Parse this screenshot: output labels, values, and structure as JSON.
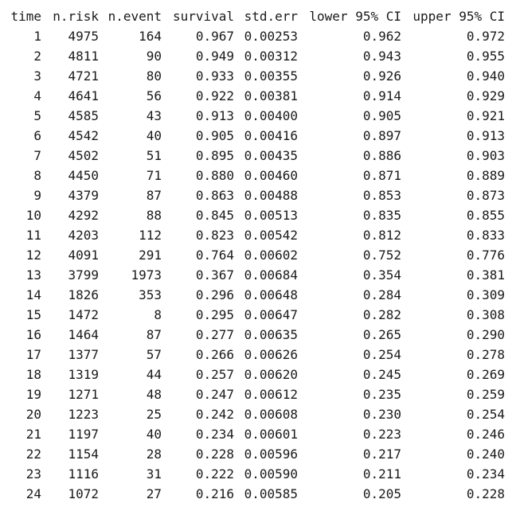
{
  "table": {
    "headers": [
      "time",
      "n.risk",
      "n.event",
      "survival",
      "std.err",
      "lower 95% CI",
      "upper 95% CI"
    ],
    "rows": [
      [
        "1",
        "4975",
        "164",
        "0.967",
        "0.00253",
        "0.962",
        "0.972"
      ],
      [
        "2",
        "4811",
        "90",
        "0.949",
        "0.00312",
        "0.943",
        "0.955"
      ],
      [
        "3",
        "4721",
        "80",
        "0.933",
        "0.00355",
        "0.926",
        "0.940"
      ],
      [
        "4",
        "4641",
        "56",
        "0.922",
        "0.00381",
        "0.914",
        "0.929"
      ],
      [
        "5",
        "4585",
        "43",
        "0.913",
        "0.00400",
        "0.905",
        "0.921"
      ],
      [
        "6",
        "4542",
        "40",
        "0.905",
        "0.00416",
        "0.897",
        "0.913"
      ],
      [
        "7",
        "4502",
        "51",
        "0.895",
        "0.00435",
        "0.886",
        "0.903"
      ],
      [
        "8",
        "4450",
        "71",
        "0.880",
        "0.00460",
        "0.871",
        "0.889"
      ],
      [
        "9",
        "4379",
        "87",
        "0.863",
        "0.00488",
        "0.853",
        "0.873"
      ],
      [
        "10",
        "4292",
        "88",
        "0.845",
        "0.00513",
        "0.835",
        "0.855"
      ],
      [
        "11",
        "4203",
        "112",
        "0.823",
        "0.00542",
        "0.812",
        "0.833"
      ],
      [
        "12",
        "4091",
        "291",
        "0.764",
        "0.00602",
        "0.752",
        "0.776"
      ],
      [
        "13",
        "3799",
        "1973",
        "0.367",
        "0.00684",
        "0.354",
        "0.381"
      ],
      [
        "14",
        "1826",
        "353",
        "0.296",
        "0.00648",
        "0.284",
        "0.309"
      ],
      [
        "15",
        "1472",
        "8",
        "0.295",
        "0.00647",
        "0.282",
        "0.308"
      ],
      [
        "16",
        "1464",
        "87",
        "0.277",
        "0.00635",
        "0.265",
        "0.290"
      ],
      [
        "17",
        "1377",
        "57",
        "0.266",
        "0.00626",
        "0.254",
        "0.278"
      ],
      [
        "18",
        "1319",
        "44",
        "0.257",
        "0.00620",
        "0.245",
        "0.269"
      ],
      [
        "19",
        "1271",
        "48",
        "0.247",
        "0.00612",
        "0.235",
        "0.259"
      ],
      [
        "20",
        "1223",
        "25",
        "0.242",
        "0.00608",
        "0.230",
        "0.254"
      ],
      [
        "21",
        "1197",
        "40",
        "0.234",
        "0.00601",
        "0.223",
        "0.246"
      ],
      [
        "22",
        "1154",
        "28",
        "0.228",
        "0.00596",
        "0.217",
        "0.240"
      ],
      [
        "23",
        "1116",
        "31",
        "0.222",
        "0.00590",
        "0.211",
        "0.234"
      ],
      [
        "24",
        "1072",
        "27",
        "0.216",
        "0.00585",
        "0.205",
        "0.228"
      ]
    ]
  }
}
